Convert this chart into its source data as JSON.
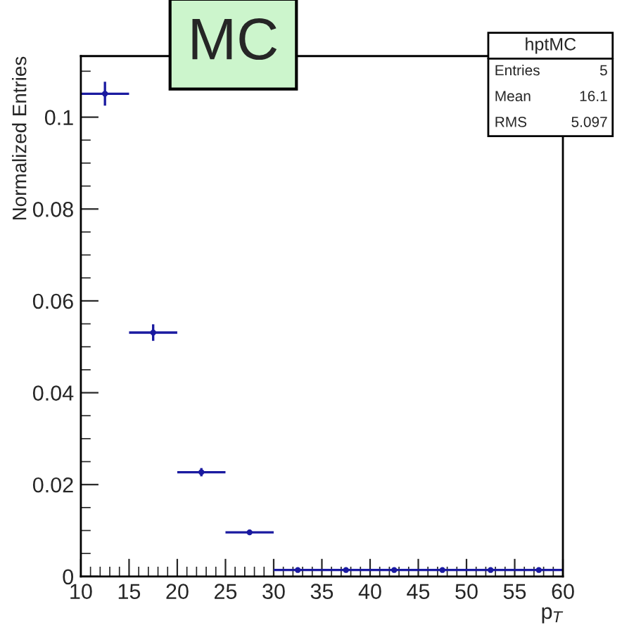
{
  "chart_data": {
    "type": "scatter",
    "title": "MC",
    "xlabel": "p$_{T}$",
    "ylabel": "Normalized Entries",
    "x": [
      12.5,
      17.5,
      22.5,
      27.5,
      32.5,
      37.5,
      42.5,
      47.5,
      52.5,
      57.5
    ],
    "values": [
      0.1051,
      0.0531,
      0.0227,
      0.0096,
      0.0014,
      0.0014,
      0.0014,
      0.0014,
      0.0014,
      0.0014
    ],
    "errors": [
      0.0026,
      0.0018,
      0.0009,
      0.0006,
      null,
      null,
      null,
      null,
      null,
      null
    ],
    "xerrors": [
      2.5,
      2.5,
      2.5,
      2.5,
      2.5,
      2.5,
      2.5,
      2.5,
      2.5,
      2.5
    ],
    "color": "#1a1aa0",
    "xlim": [
      10,
      60
    ],
    "ylim": [
      0,
      0.1133
    ],
    "xticks": [
      10,
      15,
      20,
      25,
      30,
      35,
      40,
      45,
      50,
      55,
      60
    ],
    "yticks": [
      0,
      0.02,
      0.04,
      0.06,
      0.08,
      0.1
    ],
    "annotations": [
      "hptMC",
      "Entries",
      "5",
      "Mean",
      "16.1",
      "RMS",
      "5.097"
    ]
  }
}
